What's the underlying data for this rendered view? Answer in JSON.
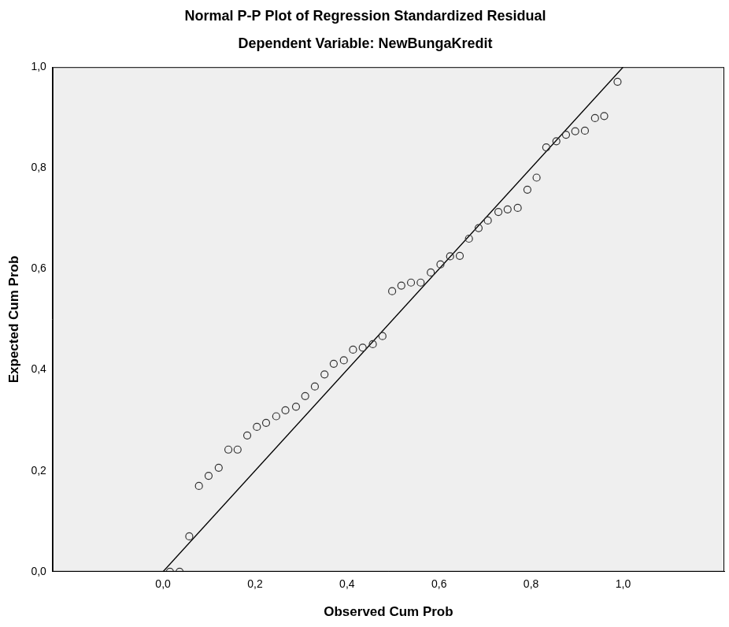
{
  "chart_data": {
    "type": "scatter",
    "title": "Normal P-P Plot of Regression Standardized Residual",
    "subtitle": "Dependent Variable: NewBungaKredit",
    "x_label": "Observed Cum Prob",
    "y_label": "Expected Cum Prob",
    "x": [
      0.015,
      0.036,
      0.057,
      0.078,
      0.099,
      0.121,
      0.142,
      0.162,
      0.183,
      0.204,
      0.224,
      0.246,
      0.266,
      0.289,
      0.309,
      0.33,
      0.351,
      0.371,
      0.393,
      0.413,
      0.434,
      0.456,
      0.477,
      0.498,
      0.518,
      0.539,
      0.56,
      0.582,
      0.603,
      0.624,
      0.645,
      0.665,
      0.686,
      0.706,
      0.729,
      0.749,
      0.771,
      0.792,
      0.812,
      0.833,
      0.855,
      0.876,
      0.896,
      0.917,
      0.939,
      0.959,
      0.988
    ],
    "values": [
      0.0,
      0.0,
      0.07,
      0.17,
      0.19,
      0.206,
      0.242,
      0.242,
      0.27,
      0.287,
      0.295,
      0.308,
      0.32,
      0.327,
      0.348,
      0.367,
      0.391,
      0.412,
      0.419,
      0.44,
      0.444,
      0.451,
      0.467,
      0.556,
      0.567,
      0.573,
      0.573,
      0.593,
      0.609,
      0.625,
      0.626,
      0.66,
      0.681,
      0.696,
      0.713,
      0.718,
      0.721,
      0.757,
      0.781,
      0.841,
      0.853,
      0.866,
      0.873,
      0.874,
      0.899,
      0.903,
      0.971
    ],
    "marker": "circle",
    "color": "#333333",
    "reference_line": {
      "x": [
        0,
        1
      ],
      "y": [
        0,
        1
      ],
      "color": "#000000"
    },
    "xlim": [
      -0.24,
      1.22
    ],
    "ylim": [
      0,
      1
    ],
    "xticks": [
      {
        "value": 0,
        "label": "0,0"
      },
      {
        "value": 0.2,
        "label": "0,2"
      },
      {
        "value": 0.4,
        "label": "0,4"
      },
      {
        "value": 0.6,
        "label": "0,6"
      },
      {
        "value": 0.8,
        "label": "0,8"
      },
      {
        "value": 1,
        "label": "1,0"
      }
    ],
    "yticks": [
      {
        "value": 0,
        "label": "0,0"
      },
      {
        "value": 0.2,
        "label": "0,2"
      },
      {
        "value": 0.4,
        "label": "0,4"
      },
      {
        "value": 0.6,
        "label": "0,6"
      },
      {
        "value": 0.8,
        "label": "0,8"
      },
      {
        "value": 1,
        "label": "1,0"
      }
    ],
    "grid": false
  }
}
